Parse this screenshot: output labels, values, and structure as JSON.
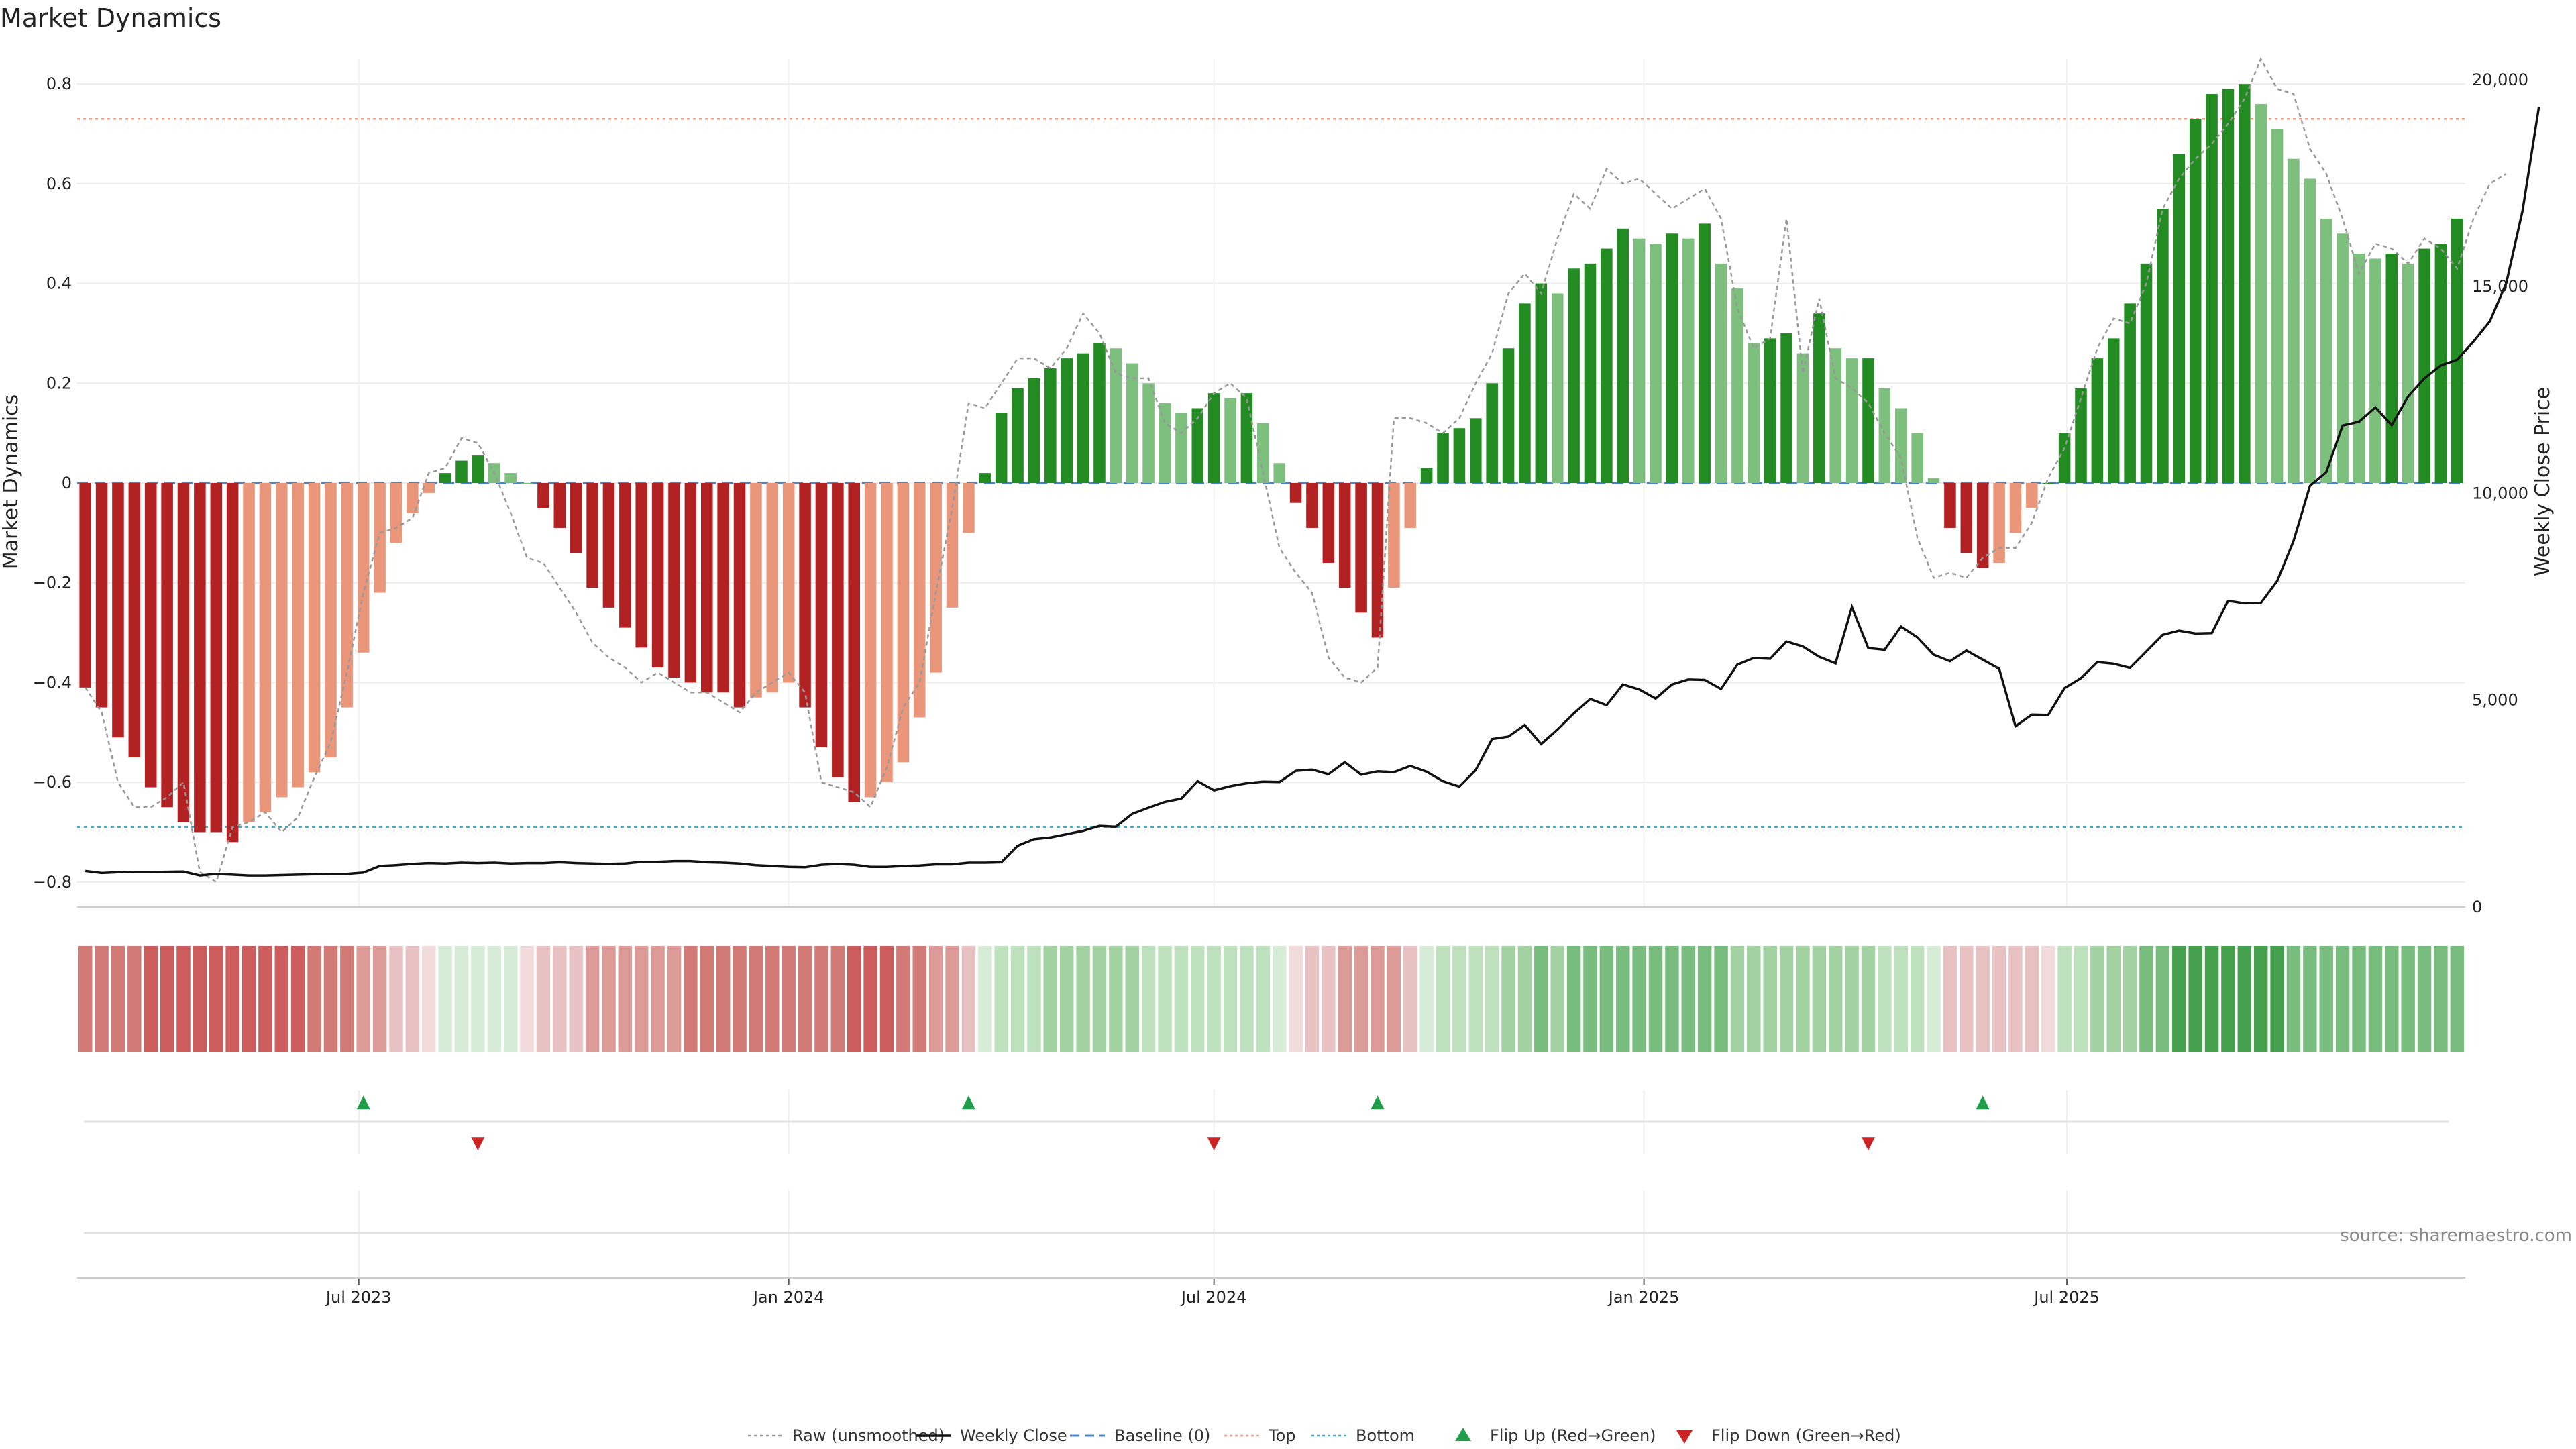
{
  "chart_data": {
    "type": "bar",
    "title": "Market Dynamics",
    "ylabel_left": "Market Dynamics",
    "ylabel_right": "Weekly Close Price",
    "ylim_left": [
      -0.85,
      0.85
    ],
    "ylim_right": [
      0,
      20500
    ],
    "yticks_left": [
      0.8,
      0.6,
      0.4,
      0.2,
      0,
      -0.2,
      -0.4,
      -0.6,
      -0.8
    ],
    "yticks_left_labels": [
      "0.8",
      "0.6",
      "0.4",
      "0.2",
      "0",
      "−0.2",
      "−0.4",
      "−0.6",
      "−0.8"
    ],
    "yticks_right": [
      20000,
      15000,
      10000,
      5000,
      0
    ],
    "yticks_right_labels": [
      "20,000",
      "15,000",
      "10,000",
      "5,000",
      "0"
    ],
    "x_start": "2023-03-06",
    "x_step_days": 7,
    "xticks": [
      {
        "date": "2023-07-01",
        "label": "Jul 2023"
      },
      {
        "date": "2024-01-01",
        "label": "Jan 2024"
      },
      {
        "date": "2024-07-01",
        "label": "Jul 2024"
      },
      {
        "date": "2025-01-01",
        "label": "Jan 2025"
      },
      {
        "date": "2025-07-01",
        "label": "Jul 2025"
      }
    ],
    "top_level": 0.73,
    "bottom_level": -0.69,
    "baseline": 0,
    "colors": {
      "strong_down": "#b22222",
      "weak_down": "#e9967a",
      "strong_up": "#228b22",
      "weak_up": "#7dbf7d",
      "raw": "#999999",
      "close": "#111111",
      "baseline": "#4a86c5",
      "top": "#f0a080",
      "bottom": "#3ab0c8",
      "flip_up": "#1f9e4a",
      "flip_down": "#cc2222"
    },
    "series": [
      {
        "name": "Market Dynamics (smoothed)",
        "values": [
          -0.41,
          -0.45,
          -0.51,
          -0.55,
          -0.61,
          -0.65,
          -0.68,
          -0.7,
          -0.7,
          -0.72,
          -0.68,
          -0.66,
          -0.63,
          -0.61,
          -0.58,
          -0.55,
          -0.45,
          -0.34,
          -0.22,
          -0.12,
          -0.06,
          -0.02,
          0.02,
          0.045,
          0.055,
          0.04,
          0.02,
          0,
          -0.05,
          -0.09,
          -0.14,
          -0.21,
          -0.25,
          -0.29,
          -0.33,
          -0.37,
          -0.39,
          -0.4,
          -0.42,
          -0.42,
          -0.45,
          -0.43,
          -0.42,
          -0.4,
          -0.45,
          -0.53,
          -0.59,
          -0.64,
          -0.63,
          -0.6,
          -0.56,
          -0.47,
          -0.38,
          -0.25,
          -0.1,
          0.02,
          0.14,
          0.19,
          0.21,
          0.23,
          0.25,
          0.26,
          0.28,
          0.27,
          0.24,
          0.2,
          0.16,
          0.14,
          0.15,
          0.18,
          0.17,
          0.18,
          0.12,
          0.04,
          -0.04,
          -0.09,
          -0.16,
          -0.21,
          -0.26,
          -0.31,
          -0.21,
          -0.09,
          0.03,
          0.1,
          0.11,
          0.13,
          0.2,
          0.27,
          0.36,
          0.4,
          0.38,
          0.43,
          0.44,
          0.47,
          0.51,
          0.49,
          0.48,
          0.5,
          0.49,
          0.52,
          0.44,
          0.39,
          0.28,
          0.29,
          0.3,
          0.26,
          0.34,
          0.27,
          0.25,
          0.25,
          0.19,
          0.15,
          0.1,
          0.01,
          -0.09,
          -0.14,
          -0.17,
          -0.16,
          -0.1,
          -0.05,
          0,
          0.1,
          0.19,
          0.25,
          0.29,
          0.36,
          0.44,
          0.55,
          0.66,
          0.73,
          0.78,
          0.79,
          0.8,
          0.76,
          0.71,
          0.65,
          0.61,
          0.53,
          0.5,
          0.46,
          0.45,
          0.46,
          0.44,
          0.47,
          0.48,
          0.53
        ]
      },
      {
        "name": "Raw (unsmoothed)",
        "values": [
          -0.41,
          -0.46,
          -0.6,
          -0.65,
          -0.65,
          -0.63,
          -0.6,
          -0.78,
          -0.8,
          -0.69,
          -0.68,
          -0.66,
          -0.7,
          -0.67,
          -0.59,
          -0.52,
          -0.38,
          -0.22,
          -0.1,
          -0.09,
          -0.07,
          0.02,
          0.03,
          0.09,
          0.08,
          0.02,
          -0.06,
          -0.15,
          -0.16,
          -0.21,
          -0.26,
          -0.32,
          -0.35,
          -0.37,
          -0.4,
          -0.38,
          -0.4,
          -0.42,
          -0.42,
          -0.44,
          -0.46,
          -0.42,
          -0.4,
          -0.38,
          -0.42,
          -0.6,
          -0.61,
          -0.62,
          -0.65,
          -0.57,
          -0.45,
          -0.4,
          -0.22,
          -0.05,
          0.16,
          0.15,
          0.2,
          0.25,
          0.25,
          0.23,
          0.27,
          0.34,
          0.3,
          0.22,
          0.21,
          0.21,
          0.12,
          0.1,
          0.13,
          0.18,
          0.2,
          0.17,
          0.02,
          -0.13,
          -0.18,
          -0.22,
          -0.35,
          -0.39,
          -0.4,
          -0.37,
          0.13,
          0.13,
          0.12,
          0.1,
          0.13,
          0.2,
          0.26,
          0.38,
          0.42,
          0.38,
          0.49,
          0.58,
          0.55,
          0.63,
          0.6,
          0.61,
          0.58,
          0.55,
          0.57,
          0.59,
          0.53,
          0.35,
          0.27,
          0.29,
          0.53,
          0.22,
          0.37,
          0.21,
          0.19,
          0.16,
          0.1,
          0.05,
          -0.11,
          -0.19,
          -0.18,
          -0.19,
          -0.15,
          -0.13,
          -0.13,
          -0.08,
          0.01,
          0.07,
          0.17,
          0.27,
          0.33,
          0.32,
          0.4,
          0.55,
          0.61,
          0.65,
          0.68,
          0.72,
          0.77,
          0.85,
          0.79,
          0.78,
          0.67,
          0.62,
          0.53,
          0.42,
          0.48,
          0.47,
          0.44,
          0.49,
          0.47,
          0.43,
          0.53,
          0.6,
          0.62
        ]
      },
      {
        "name": "Weekly Close",
        "values": [
          870,
          820,
          840,
          845,
          845,
          850,
          855,
          760,
          800,
          780,
          760,
          760,
          770,
          780,
          790,
          800,
          800,
          830,
          990,
          1010,
          1040,
          1060,
          1050,
          1070,
          1060,
          1070,
          1050,
          1060,
          1060,
          1080,
          1060,
          1050,
          1040,
          1050,
          1090,
          1090,
          1110,
          1110,
          1080,
          1070,
          1050,
          1010,
          990,
          970,
          960,
          1020,
          1040,
          1020,
          970,
          970,
          990,
          1000,
          1030,
          1030,
          1070,
          1070,
          1080,
          1480,
          1640,
          1680,
          1760,
          1840,
          1960,
          1940,
          2250,
          2400,
          2540,
          2620,
          3040,
          2820,
          2920,
          2990,
          3030,
          3020,
          3290,
          3320,
          3210,
          3500,
          3200,
          3280,
          3260,
          3410,
          3270,
          3040,
          2910,
          3310,
          4060,
          4120,
          4400,
          3940,
          4290,
          4680,
          5030,
          4880,
          5380,
          5260,
          5040,
          5380,
          5500,
          5490,
          5270,
          5860,
          6020,
          6000,
          6420,
          6300,
          6050,
          5890,
          7250,
          6260,
          6220,
          6780,
          6520,
          6100,
          5940,
          6200,
          5980,
          5760,
          4370,
          4650,
          4640,
          5290,
          5530,
          5920,
          5880,
          5780,
          6180,
          6580,
          6680,
          6610,
          6620,
          7400,
          7340,
          7350,
          7880,
          8850,
          10180,
          10510,
          11640,
          11730,
          12080,
          11650,
          12340,
          12780,
          13090,
          13230,
          13670,
          14160,
          15080,
          16830,
          19340
        ]
      }
    ],
    "flips": {
      "up_labels": [
        "▲",
        "▲",
        "▲",
        "▲"
      ],
      "up_dates": [
        "2023-07-03",
        "2024-03-18",
        "2024-09-09",
        "2025-05-26"
      ],
      "down_labels": [
        "▼",
        "▼",
        "▼"
      ],
      "down_dates": [
        "2023-08-21",
        "2024-07-01",
        "2025-04-07"
      ]
    },
    "heat_ramp": [
      {
        "value": -0.7,
        "color": "#cd5c5c"
      },
      {
        "value": -0.5,
        "color": "#d27a75"
      },
      {
        "value": -0.3,
        "color": "#dc9b97"
      },
      {
        "value": -0.1,
        "color": "#e8c2c2"
      },
      {
        "value": 0.0,
        "color": "#f0dada"
      },
      {
        "value": 0.01,
        "color": "#d6ecd6"
      },
      {
        "value": 0.15,
        "color": "#bde0bd"
      },
      {
        "value": 0.3,
        "color": "#a2d2a2"
      },
      {
        "value": 0.5,
        "color": "#79bd7e"
      },
      {
        "value": 0.8,
        "color": "#46a14e"
      }
    ]
  },
  "legend": [
    {
      "label": "Raw (unsmoothed)",
      "symbol": "raw"
    },
    {
      "label": "Weekly Close",
      "symbol": "close"
    },
    {
      "label": "Baseline (0)",
      "symbol": "baseline"
    },
    {
      "label": "Top",
      "symbol": "top"
    },
    {
      "label": "Bottom",
      "symbol": "bottom"
    },
    {
      "label": "Flip Up (Red→Green)",
      "symbol": "flip_up"
    },
    {
      "label": "Flip Down (Green→Red)",
      "symbol": "flip_down"
    }
  ],
  "source": "source: sharemaestro.com"
}
